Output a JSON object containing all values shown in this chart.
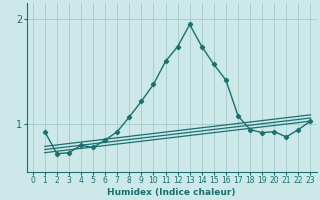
{
  "xlabel": "Humidex (Indice chaleur)",
  "background_color": "#cce8e8",
  "grid_color": "#aacfcf",
  "line_color": "#1a7070",
  "xlim": [
    -0.5,
    23.5
  ],
  "ylim": [
    0.55,
    2.15
  ],
  "yticks": [
    1,
    2
  ],
  "xticks": [
    0,
    1,
    2,
    3,
    4,
    5,
    6,
    7,
    8,
    9,
    10,
    11,
    12,
    13,
    14,
    15,
    16,
    17,
    18,
    19,
    20,
    21,
    22,
    23
  ],
  "main_x": [
    1,
    2,
    3,
    4,
    5,
    6,
    7,
    8,
    9,
    10,
    11,
    12,
    13,
    14,
    15,
    16,
    17,
    18,
    19,
    20,
    21,
    22,
    23
  ],
  "main_y": [
    0.93,
    0.72,
    0.73,
    0.8,
    0.78,
    0.85,
    0.93,
    1.07,
    1.22,
    1.38,
    1.6,
    1.74,
    1.95,
    1.74,
    1.57,
    1.42,
    1.08,
    0.95,
    0.92,
    0.93,
    0.88,
    0.95,
    1.03
  ],
  "ref_lines": [
    {
      "x0": 1,
      "y0": 0.73,
      "x1": 23,
      "y1": 1.03
    },
    {
      "x0": 1,
      "y0": 0.76,
      "x1": 23,
      "y1": 1.06
    },
    {
      "x0": 1,
      "y0": 0.79,
      "x1": 23,
      "y1": 1.09
    }
  ]
}
